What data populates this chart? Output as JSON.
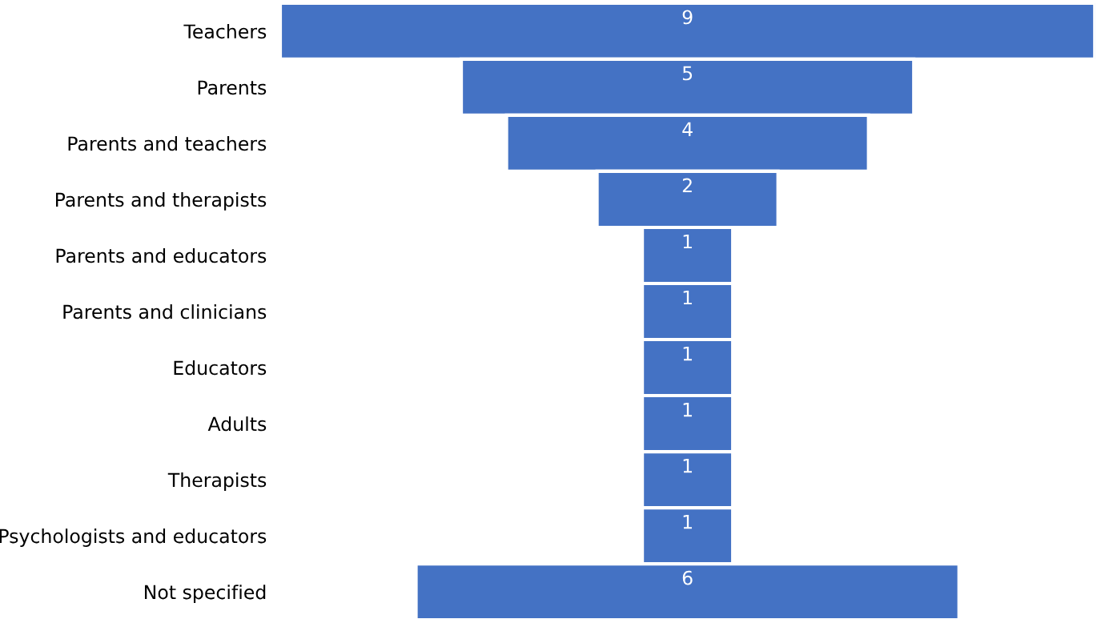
{
  "chart_data": {
    "type": "other",
    "categories": [
      "Teachers",
      "Parents",
      "Parents and teachers",
      "Parents and therapists",
      "Parents and educators",
      "Parents and clinicians",
      "Educators",
      "Adults",
      "Therapists",
      "Psychologists and educators",
      "Not specified"
    ],
    "values": [
      9,
      5,
      4,
      2,
      1,
      1,
      1,
      1,
      1,
      1,
      6
    ],
    "color": "#4472c4",
    "data_labels": true
  }
}
